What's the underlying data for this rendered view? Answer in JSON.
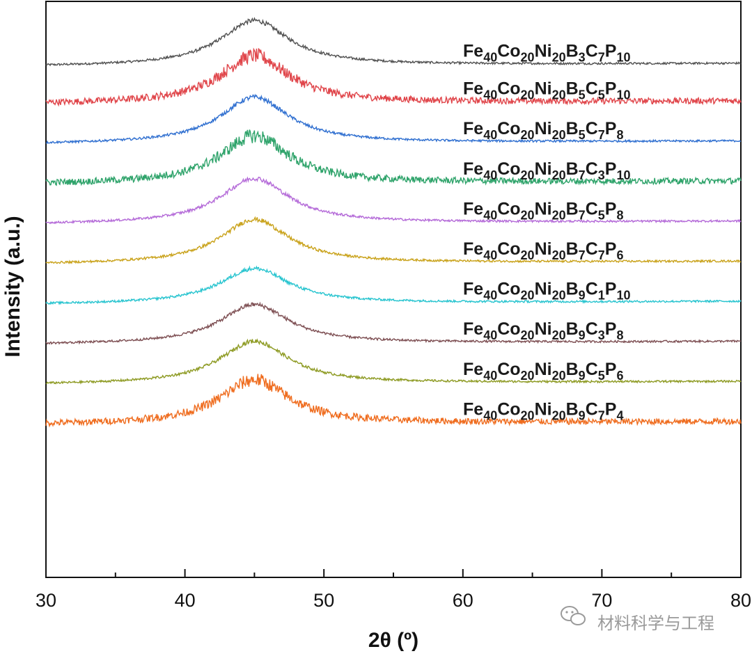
{
  "chart_data": {
    "type": "line",
    "title": "",
    "xlabel": "2θ (º)",
    "ylabel": "Intensity (a.u.)",
    "xlim": [
      30,
      80
    ],
    "ylim": [
      0,
      11.5
    ],
    "xticks": [
      30,
      40,
      50,
      60,
      70,
      80
    ],
    "xtick_labels": [
      "30",
      "40",
      "50",
      "60",
      "70",
      "80"
    ],
    "yticks": "none",
    "peak_center": 45,
    "series": [
      {
        "name": "Fe40Co20Ni20B3C7P10",
        "label_parts": [
          [
            "Fe",
            ""
          ],
          [
            "40",
            "sub"
          ],
          [
            "Co",
            ""
          ],
          [
            "20",
            "sub"
          ],
          [
            "Ni",
            ""
          ],
          [
            "20",
            "sub"
          ],
          [
            "B",
            ""
          ],
          [
            "3",
            "sub"
          ],
          [
            "C",
            ""
          ],
          [
            "7",
            "sub"
          ],
          [
            "P",
            ""
          ],
          [
            "10",
            "sub"
          ]
        ],
        "color": "#505050",
        "baseline": 10.2,
        "peak_height": 0.9,
        "noise": 0.02
      },
      {
        "name": "Fe40Co20Ni20B5C5P10",
        "label_parts": [
          [
            "Fe",
            ""
          ],
          [
            "40",
            "sub"
          ],
          [
            "Co",
            ""
          ],
          [
            "20",
            "sub"
          ],
          [
            "Ni",
            ""
          ],
          [
            "20",
            "sub"
          ],
          [
            "B",
            ""
          ],
          [
            "5",
            "sub"
          ],
          [
            "C",
            ""
          ],
          [
            "5",
            "sub"
          ],
          [
            "P",
            ""
          ],
          [
            "10",
            "sub"
          ]
        ],
        "color": "#e0454a",
        "baseline": 9.45,
        "peak_height": 0.95,
        "noise": 0.06
      },
      {
        "name": "Fe40Co20Ni20B5C7P8",
        "label_parts": [
          [
            "Fe",
            ""
          ],
          [
            "40",
            "sub"
          ],
          [
            "Co",
            ""
          ],
          [
            "20",
            "sub"
          ],
          [
            "Ni",
            ""
          ],
          [
            "20",
            "sub"
          ],
          [
            "B",
            ""
          ],
          [
            "5",
            "sub"
          ],
          [
            "C",
            ""
          ],
          [
            "7",
            "sub"
          ],
          [
            "P",
            ""
          ],
          [
            "8",
            "sub"
          ]
        ],
        "color": "#2f6fd0",
        "baseline": 8.65,
        "peak_height": 0.92,
        "noise": 0.02
      },
      {
        "name": "Fe40Co20Ni20B7C3P10",
        "label_parts": [
          [
            "Fe",
            ""
          ],
          [
            "40",
            "sub"
          ],
          [
            "Co",
            ""
          ],
          [
            "20",
            "sub"
          ],
          [
            "Ni",
            ""
          ],
          [
            "20",
            "sub"
          ],
          [
            "B",
            ""
          ],
          [
            "7",
            "sub"
          ],
          [
            "C",
            ""
          ],
          [
            "3",
            "sub"
          ],
          [
            "P",
            ""
          ],
          [
            "10",
            "sub"
          ]
        ],
        "color": "#2ea36a",
        "baseline": 7.85,
        "peak_height": 0.95,
        "noise": 0.06
      },
      {
        "name": "Fe40Co20Ni20B7C5P8",
        "label_parts": [
          [
            "Fe",
            ""
          ],
          [
            "40",
            "sub"
          ],
          [
            "Co",
            ""
          ],
          [
            "20",
            "sub"
          ],
          [
            "Ni",
            ""
          ],
          [
            "20",
            "sub"
          ],
          [
            "B",
            ""
          ],
          [
            "7",
            "sub"
          ],
          [
            "C",
            ""
          ],
          [
            "5",
            "sub"
          ],
          [
            "P",
            ""
          ],
          [
            "8",
            "sub"
          ]
        ],
        "color": "#b46ad8",
        "baseline": 7.05,
        "peak_height": 0.9,
        "noise": 0.02
      },
      {
        "name": "Fe40Co20Ni20B7C7P6",
        "label_parts": [
          [
            "Fe",
            ""
          ],
          [
            "40",
            "sub"
          ],
          [
            "Co",
            ""
          ],
          [
            "20",
            "sub"
          ],
          [
            "Ni",
            ""
          ],
          [
            "20",
            "sub"
          ],
          [
            "B",
            ""
          ],
          [
            "7",
            "sub"
          ],
          [
            "C",
            ""
          ],
          [
            "7",
            "sub"
          ],
          [
            "P",
            ""
          ],
          [
            "6",
            "sub"
          ]
        ],
        "color": "#c9a21a",
        "baseline": 6.25,
        "peak_height": 0.88,
        "noise": 0.02
      },
      {
        "name": "Fe40Co20Ni20B9C1P10",
        "label_parts": [
          [
            "Fe",
            ""
          ],
          [
            "40",
            "sub"
          ],
          [
            "Co",
            ""
          ],
          [
            "20",
            "sub"
          ],
          [
            "Ni",
            ""
          ],
          [
            "20",
            "sub"
          ],
          [
            "B",
            ""
          ],
          [
            "9",
            "sub"
          ],
          [
            "C",
            ""
          ],
          [
            "1",
            "sub"
          ],
          [
            "P",
            ""
          ],
          [
            "10",
            "sub"
          ]
        ],
        "color": "#27c4cf",
        "baseline": 5.45,
        "peak_height": 0.7,
        "noise": 0.02
      },
      {
        "name": "Fe40Co20Ni20B9C3P8",
        "label_parts": [
          [
            "Fe",
            ""
          ],
          [
            "40",
            "sub"
          ],
          [
            "Co",
            ""
          ],
          [
            "20",
            "sub"
          ],
          [
            "Ni",
            ""
          ],
          [
            "20",
            "sub"
          ],
          [
            "B",
            ""
          ],
          [
            "9",
            "sub"
          ],
          [
            "C",
            ""
          ],
          [
            "3",
            "sub"
          ],
          [
            "P",
            ""
          ],
          [
            "8",
            "sub"
          ]
        ],
        "color": "#7d4e52",
        "baseline": 4.65,
        "peak_height": 0.78,
        "noise": 0.02
      },
      {
        "name": "Fe40Co20Ni20B9C5P6",
        "label_parts": [
          [
            "Fe",
            ""
          ],
          [
            "40",
            "sub"
          ],
          [
            "Co",
            ""
          ],
          [
            "20",
            "sub"
          ],
          [
            "Ni",
            ""
          ],
          [
            "20",
            "sub"
          ],
          [
            "B",
            ""
          ],
          [
            "9",
            "sub"
          ],
          [
            "C",
            ""
          ],
          [
            "5",
            "sub"
          ],
          [
            "P",
            ""
          ],
          [
            "6",
            "sub"
          ]
        ],
        "color": "#8d9a22",
        "baseline": 3.85,
        "peak_height": 0.85,
        "noise": 0.02
      },
      {
        "name": "Fe40Co20Ni20B9C7P4",
        "label_parts": [
          [
            "Fe",
            ""
          ],
          [
            "40",
            "sub"
          ],
          [
            "Co",
            ""
          ],
          [
            "20",
            "sub"
          ],
          [
            "Ni",
            ""
          ],
          [
            "20",
            "sub"
          ],
          [
            "B",
            ""
          ],
          [
            "9",
            "sub"
          ],
          [
            "C",
            ""
          ],
          [
            "7",
            "sub"
          ],
          [
            "P",
            ""
          ],
          [
            "4",
            "sub"
          ]
        ],
        "color": "#ef6c1e",
        "baseline": 3.05,
        "peak_height": 0.88,
        "noise": 0.06
      }
    ]
  },
  "watermark": {
    "text": "材料科学与工程",
    "icon": "wechat-icon"
  }
}
